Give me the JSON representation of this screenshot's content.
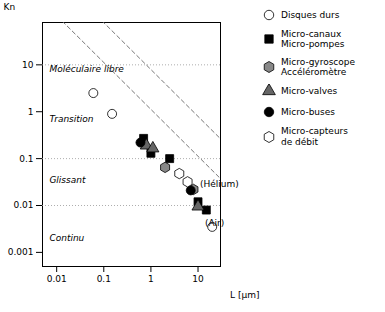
{
  "chart_data": {
    "type": "scatter",
    "log": true,
    "xlabel": "L [μm]",
    "ylabel": "Kn",
    "xlim": [
      0.005,
      30
    ],
    "ylim": [
      0.0005,
      80
    ],
    "xticks": [
      0.01,
      0.1,
      1,
      10
    ],
    "yticks": [
      0.001,
      0.01,
      0.1,
      1,
      10
    ],
    "grid": false,
    "legend": "right",
    "series": [
      {
        "name": "Disques durs",
        "marker": "circle",
        "color": "white",
        "x": [
          0.06,
          0.15,
          20.0
        ],
        "values": [
          2.5,
          0.9,
          0.0035
        ]
      },
      {
        "name": "Micro-canaux\nMicro-pompes",
        "marker": "square",
        "color": "black",
        "x": [
          0.7,
          1.0,
          2.5,
          10.0,
          15.0
        ],
        "values": [
          0.27,
          0.13,
          0.1,
          0.012,
          0.008
        ]
      },
      {
        "name": "Micro-gyroscope\nAccéléromètre",
        "marker": "hexagon",
        "color": "#888888",
        "x": [
          2.0,
          8.0
        ],
        "values": [
          0.065,
          0.022
        ]
      },
      {
        "name": "Micro-valves",
        "marker": "triangle",
        "color": "#666666",
        "x": [
          0.8,
          1.1,
          10.0
        ],
        "values": [
          0.19,
          0.165,
          0.0095
        ]
      },
      {
        "name": "Micro-buses",
        "marker": "circle",
        "color": "black",
        "x": [
          0.6,
          7.0
        ],
        "values": [
          0.22,
          0.021
        ]
      },
      {
        "name": "Micro-capteurs\nde débit",
        "marker": "hexagon",
        "color": "white",
        "x": [
          4.0,
          6.0
        ],
        "values": [
          0.048,
          0.032
        ]
      }
    ],
    "hlines": {
      "values": [
        10.0,
        0.1,
        0.01
      ],
      "color": "#999999",
      "line_style": "dotted"
    },
    "reference_lines": [
      {
        "slope": -1,
        "intercept_log": 0.9,
        "color": "#666666",
        "line_style": "dashed"
      },
      {
        "slope": -1,
        "intercept_log": 0.05,
        "color": "#666666",
        "line_style": "dashed"
      }
    ],
    "regions": [
      {
        "text": "Moléculaire libre",
        "x": 0.007,
        "y": 8.0
      },
      {
        "text": "Transition",
        "x": 0.007,
        "y": 0.7
      },
      {
        "text": "Glissant",
        "x": 0.007,
        "y": 0.035
      },
      {
        "text": "Continu",
        "x": 0.007,
        "y": 0.002
      }
    ],
    "annotations": [
      {
        "text": "(Hélium)",
        "x": 11.0,
        "y": 0.028
      },
      {
        "text": "(Air)",
        "x": 14.0,
        "y": 0.0042
      }
    ]
  }
}
